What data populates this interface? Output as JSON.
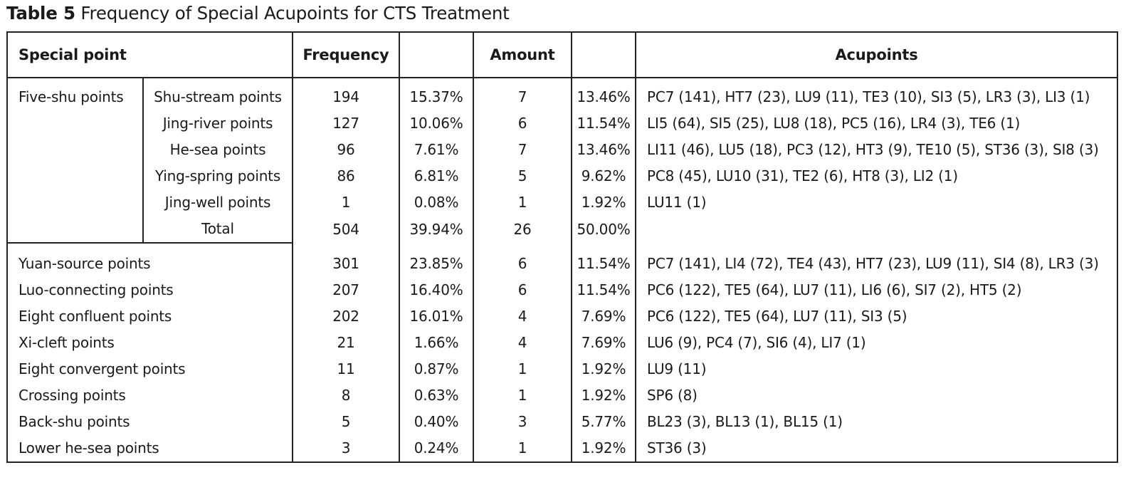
{
  "caption": {
    "label": "Table 5",
    "title": "Frequency of Special Acupoints for CTS Treatment"
  },
  "headers": {
    "special_point": "Special point",
    "frequency": "Frequency",
    "amount": "Amount",
    "acupoints": "Acupoints"
  },
  "five_shu": {
    "group": "Five-shu points",
    "rows": [
      {
        "sub": "Shu-stream points",
        "freq": "194",
        "freq_pct": "15.37%",
        "amount": "7",
        "amount_pct": "13.46%",
        "acupoints": "PC7 (141), HT7 (23), LU9 (11), TE3 (10), SI3 (5), LR3 (3), LI3 (1)"
      },
      {
        "sub": "Jing-river points",
        "freq": "127",
        "freq_pct": "10.06%",
        "amount": "6",
        "amount_pct": "11.54%",
        "acupoints": "LI5 (64), SI5 (25), LU8 (18), PC5 (16), LR4 (3), TE6 (1)"
      },
      {
        "sub": "He-sea points",
        "freq": "96",
        "freq_pct": "7.61%",
        "amount": "7",
        "amount_pct": "13.46%",
        "acupoints": "LI11 (46), LU5 (18), PC3 (12), HT3 (9), TE10 (5), ST36 (3), SI8 (3)"
      },
      {
        "sub": "Ying-spring points",
        "freq": "86",
        "freq_pct": "6.81%",
        "amount": "5",
        "amount_pct": "9.62%",
        "acupoints": "PC8 (45), LU10 (31), TE2 (6), HT8 (3), LI2 (1)"
      },
      {
        "sub": "Jing-well points",
        "freq": "1",
        "freq_pct": "0.08%",
        "amount": "1",
        "amount_pct": "1.92%",
        "acupoints": "LU11 (1)"
      },
      {
        "sub": "Total",
        "freq": "504",
        "freq_pct": "39.94%",
        "amount": "26",
        "amount_pct": "50.00%",
        "acupoints": ""
      }
    ]
  },
  "others": [
    {
      "name": "Yuan-source points",
      "freq": "301",
      "freq_pct": "23.85%",
      "amount": "6",
      "amount_pct": "11.54%",
      "acupoints": "PC7 (141), LI4 (72), TE4 (43), HT7 (23), LU9 (11), SI4 (8), LR3 (3)"
    },
    {
      "name": "Luo-connecting points",
      "freq": "207",
      "freq_pct": "16.40%",
      "amount": "6",
      "amount_pct": "11.54%",
      "acupoints": "PC6 (122), TE5 (64), LU7 (11), LI6 (6), SI7 (2), HT5 (2)"
    },
    {
      "name": "Eight confluent points",
      "freq": "202",
      "freq_pct": "16.01%",
      "amount": "4",
      "amount_pct": "7.69%",
      "acupoints": "PC6 (122), TE5 (64), LU7 (11), SI3 (5)"
    },
    {
      "name": "Xi-cleft points",
      "freq": "21",
      "freq_pct": "1.66%",
      "amount": "4",
      "amount_pct": "7.69%",
      "acupoints": "LU6 (9), PC4 (7), SI6 (4), LI7 (1)"
    },
    {
      "name": "Eight convergent points",
      "freq": "11",
      "freq_pct": "0.87%",
      "amount": "1",
      "amount_pct": "1.92%",
      "acupoints": "LU9 (11)"
    },
    {
      "name": "Crossing points",
      "freq": "8",
      "freq_pct": "0.63%",
      "amount": "1",
      "amount_pct": "1.92%",
      "acupoints": "SP6 (8)"
    },
    {
      "name": "Back-shu points",
      "freq": "5",
      "freq_pct": "0.40%",
      "amount": "3",
      "amount_pct": "5.77%",
      "acupoints": "BL23 (3), BL13 (1), BL15 (1)"
    },
    {
      "name": "Lower he-sea points",
      "freq": "3",
      "freq_pct": "0.24%",
      "amount": "1",
      "amount_pct": "1.92%",
      "acupoints": "ST36 (3)"
    }
  ]
}
